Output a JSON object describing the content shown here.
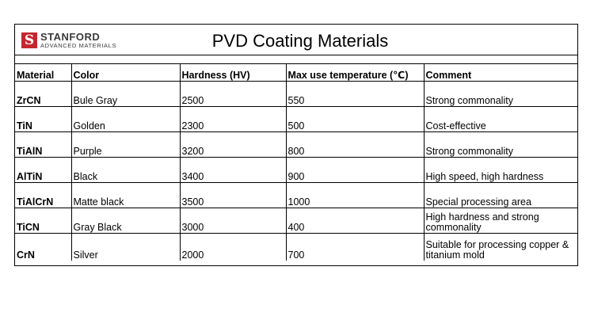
{
  "logo": {
    "mark": "S",
    "name": "STANFORD",
    "subtitle": "ADVANCED MATERIALS"
  },
  "title": "PVD Coating Materials",
  "table": {
    "headers": [
      "Material",
      "Color",
      "Hardness (HV)",
      "Max use temperature (℃)",
      "Comment"
    ],
    "rows": [
      [
        "ZrCN",
        "Bule Gray",
        "2500",
        "550",
        "Strong commonality"
      ],
      [
        "TiN",
        "Golden",
        "2300",
        "500",
        "Cost-effective"
      ],
      [
        "TiAlN",
        "Purple",
        "3200",
        "800",
        "Strong commonality"
      ],
      [
        "AlTiN",
        "Black",
        "3400",
        "900",
        "High speed, high hardness"
      ],
      [
        "TiAlCrN",
        "Matte black",
        "3500",
        "1000",
        "Special processing area"
      ],
      [
        "TiCN",
        "Gray Black",
        "3000",
        "400",
        "High hardness and strong commonality"
      ],
      [
        "CrN",
        "Silver",
        "2000",
        "700",
        "Suitable for processing copper & titanium mold"
      ]
    ]
  },
  "colors": {
    "logo_red": "#c4262e",
    "logo_text": "#3a3a3a"
  }
}
